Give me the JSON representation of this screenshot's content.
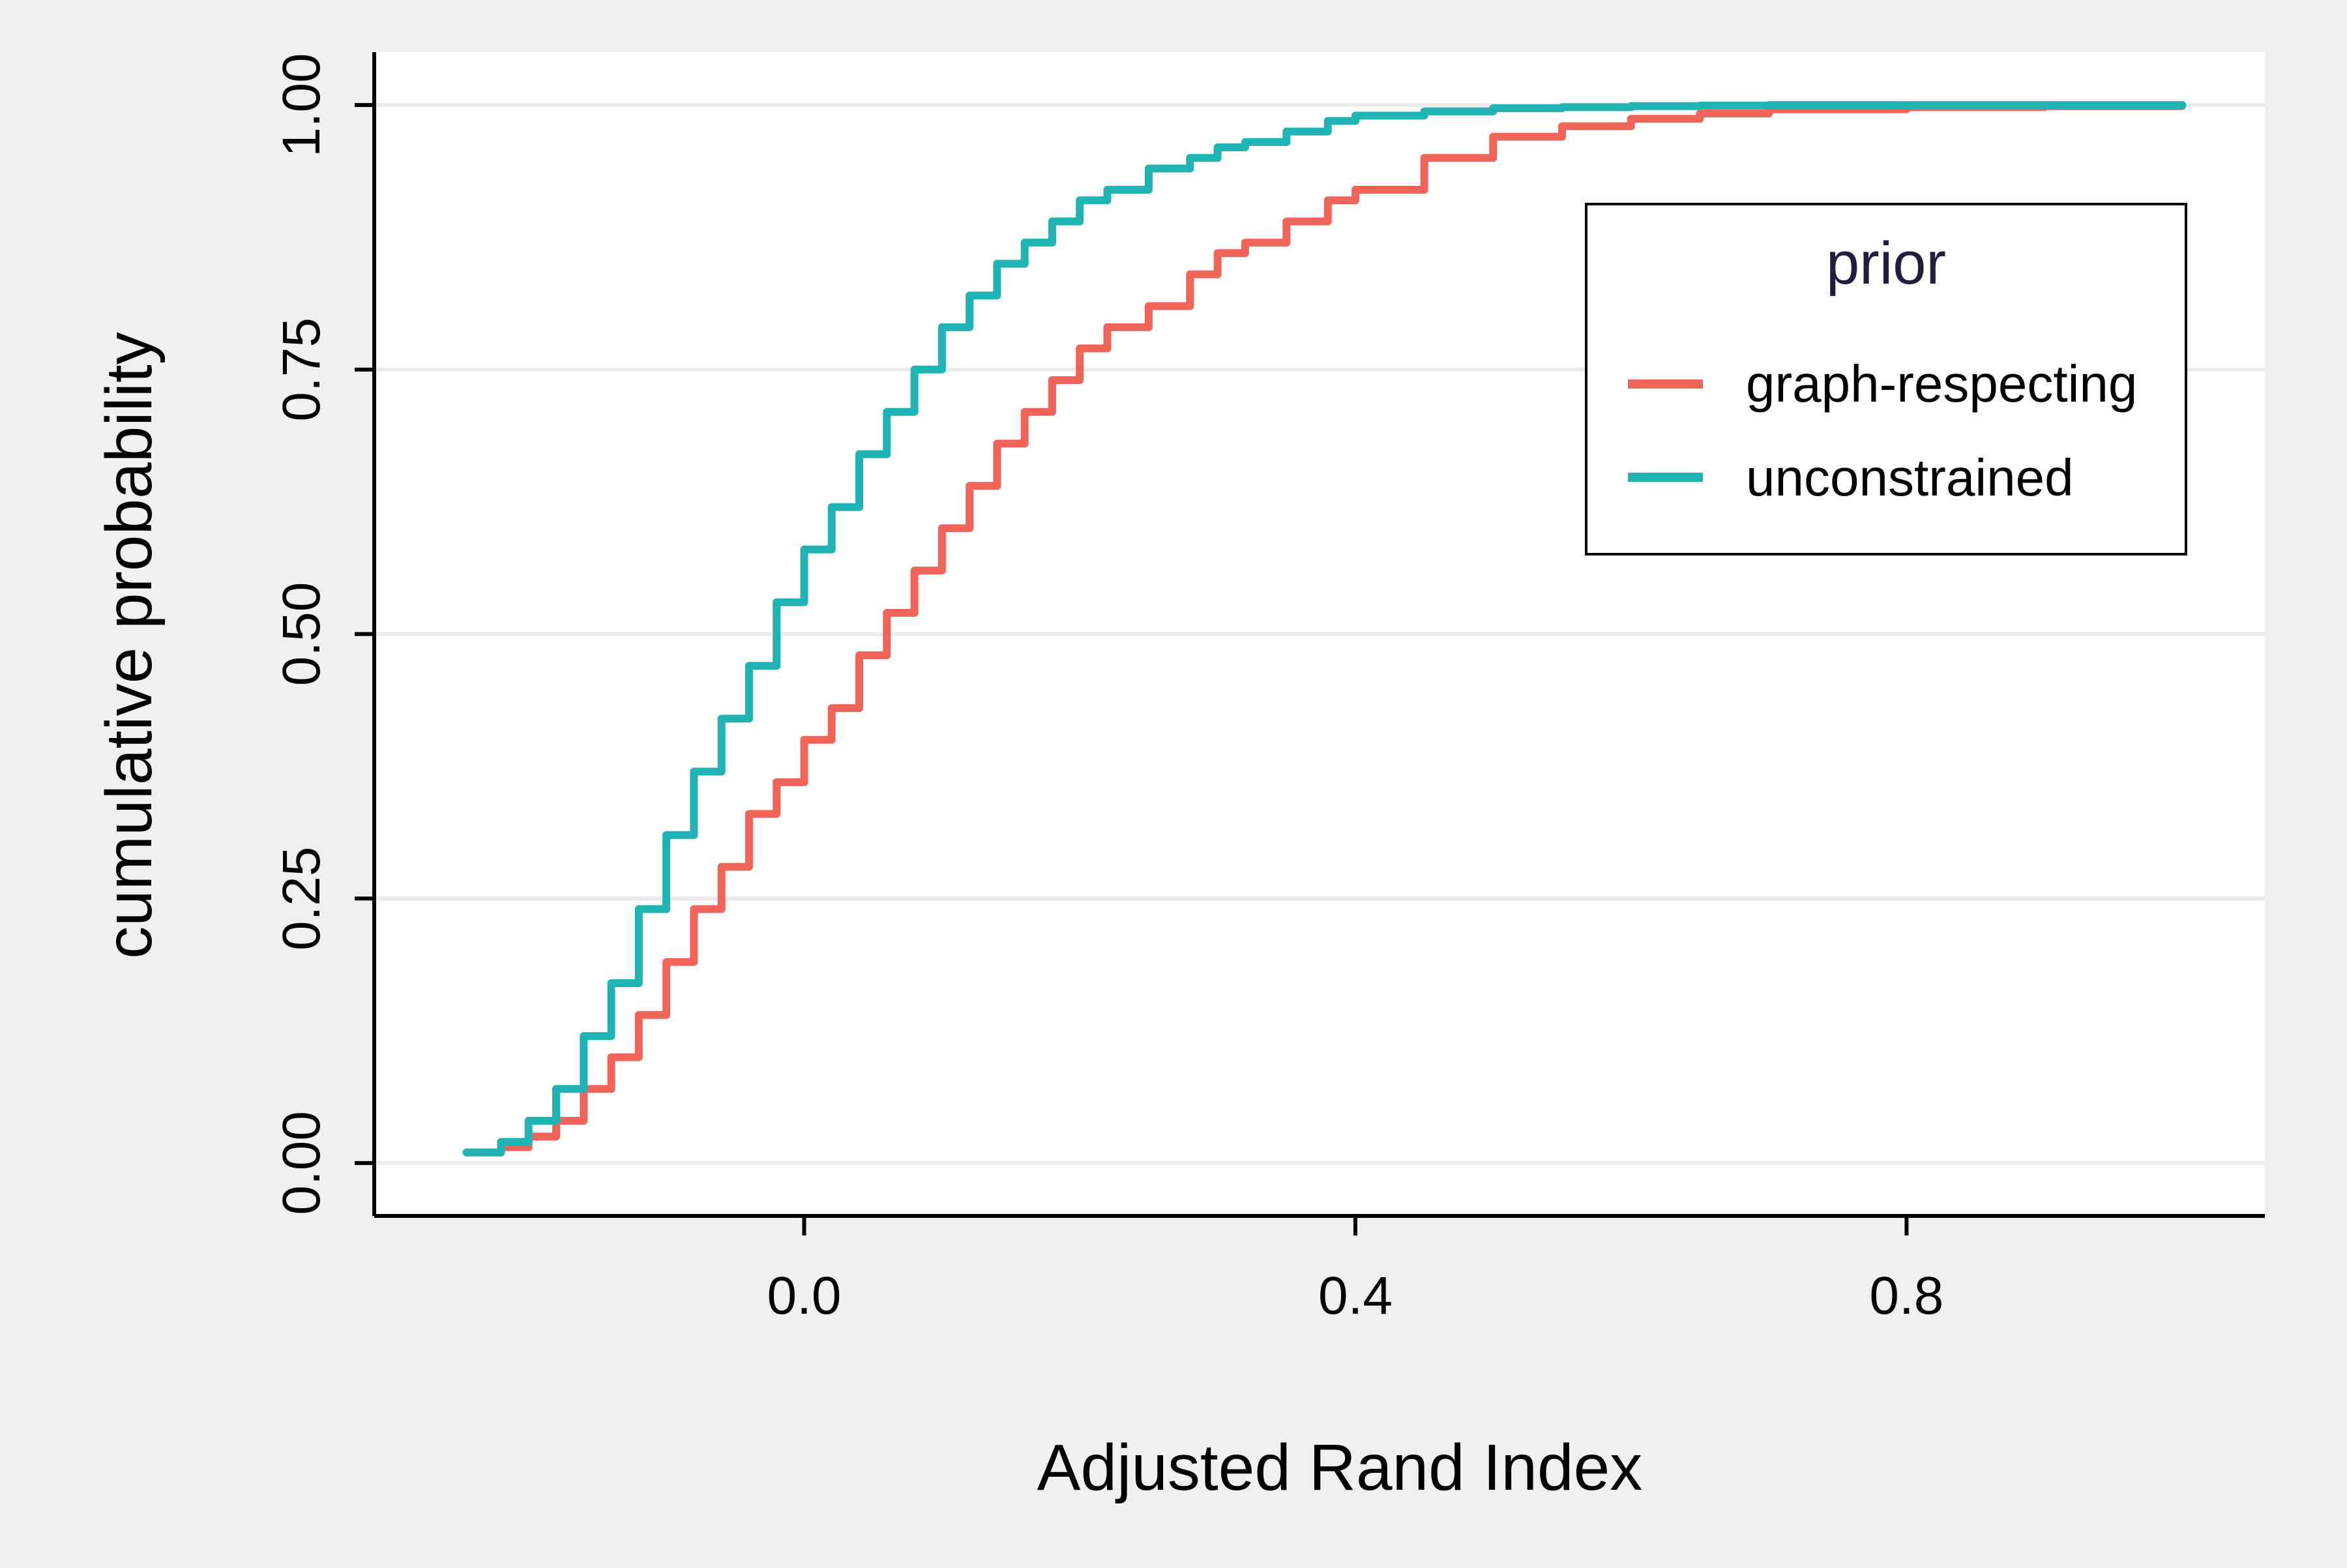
{
  "chart_data": {
    "type": "line",
    "step": true,
    "xlabel": "Adjusted Rand Index",
    "ylabel": "cumulative probability",
    "x_ticks": [
      "0.0",
      "0.4",
      "0.8"
    ],
    "x_tick_values": [
      0.0,
      0.4,
      0.8
    ],
    "y_ticks": [
      "0.00",
      "0.25",
      "0.50",
      "0.75",
      "1.00"
    ],
    "y_tick_values": [
      0.0,
      0.25,
      0.5,
      0.75,
      1.0
    ],
    "xlim": [
      -0.312,
      1.06
    ],
    "ylim": [
      -0.05,
      1.05
    ],
    "grid": "horizontal",
    "legend": {
      "title": "prior",
      "placement": "top-right",
      "title_color": "#1f1f3d"
    },
    "background": "#f0f0f0",
    "panel_background": "#ffffff",
    "series": [
      {
        "name": "graph-respecting",
        "color": "#f0645a",
        "x": [
          -0.245,
          -0.22,
          -0.2,
          -0.18,
          -0.16,
          -0.14,
          -0.12,
          -0.1,
          -0.08,
          -0.06,
          -0.04,
          -0.02,
          0.0,
          0.02,
          0.04,
          0.06,
          0.08,
          0.1,
          0.12,
          0.14,
          0.16,
          0.18,
          0.2,
          0.22,
          0.25,
          0.28,
          0.3,
          0.32,
          0.35,
          0.38,
          0.4,
          0.45,
          0.5,
          0.55,
          0.6,
          0.65,
          0.7,
          0.8,
          0.9,
          1.0
        ],
        "y": [
          0.01,
          0.015,
          0.025,
          0.04,
          0.07,
          0.1,
          0.14,
          0.19,
          0.24,
          0.28,
          0.33,
          0.36,
          0.4,
          0.43,
          0.48,
          0.52,
          0.56,
          0.6,
          0.64,
          0.68,
          0.71,
          0.74,
          0.77,
          0.79,
          0.81,
          0.84,
          0.86,
          0.87,
          0.89,
          0.91,
          0.92,
          0.95,
          0.97,
          0.98,
          0.987,
          0.992,
          0.996,
          0.998,
          0.999,
          1.0
        ]
      },
      {
        "name": "unconstrained",
        "color": "#1fb3b3",
        "x": [
          -0.245,
          -0.22,
          -0.2,
          -0.18,
          -0.16,
          -0.14,
          -0.12,
          -0.1,
          -0.08,
          -0.06,
          -0.04,
          -0.02,
          0.0,
          0.02,
          0.04,
          0.06,
          0.08,
          0.1,
          0.12,
          0.14,
          0.16,
          0.18,
          0.2,
          0.22,
          0.25,
          0.28,
          0.3,
          0.32,
          0.35,
          0.38,
          0.4,
          0.45,
          0.5,
          0.55,
          0.6,
          0.65,
          0.7,
          0.8,
          0.9,
          1.0
        ],
        "y": [
          0.01,
          0.02,
          0.04,
          0.07,
          0.12,
          0.17,
          0.24,
          0.31,
          0.37,
          0.42,
          0.47,
          0.53,
          0.58,
          0.62,
          0.67,
          0.71,
          0.75,
          0.79,
          0.82,
          0.85,
          0.87,
          0.89,
          0.91,
          0.92,
          0.94,
          0.95,
          0.96,
          0.965,
          0.975,
          0.985,
          0.99,
          0.994,
          0.997,
          0.998,
          0.999,
          0.9995,
          1.0,
          1.0,
          1.0,
          1.0
        ]
      }
    ]
  }
}
